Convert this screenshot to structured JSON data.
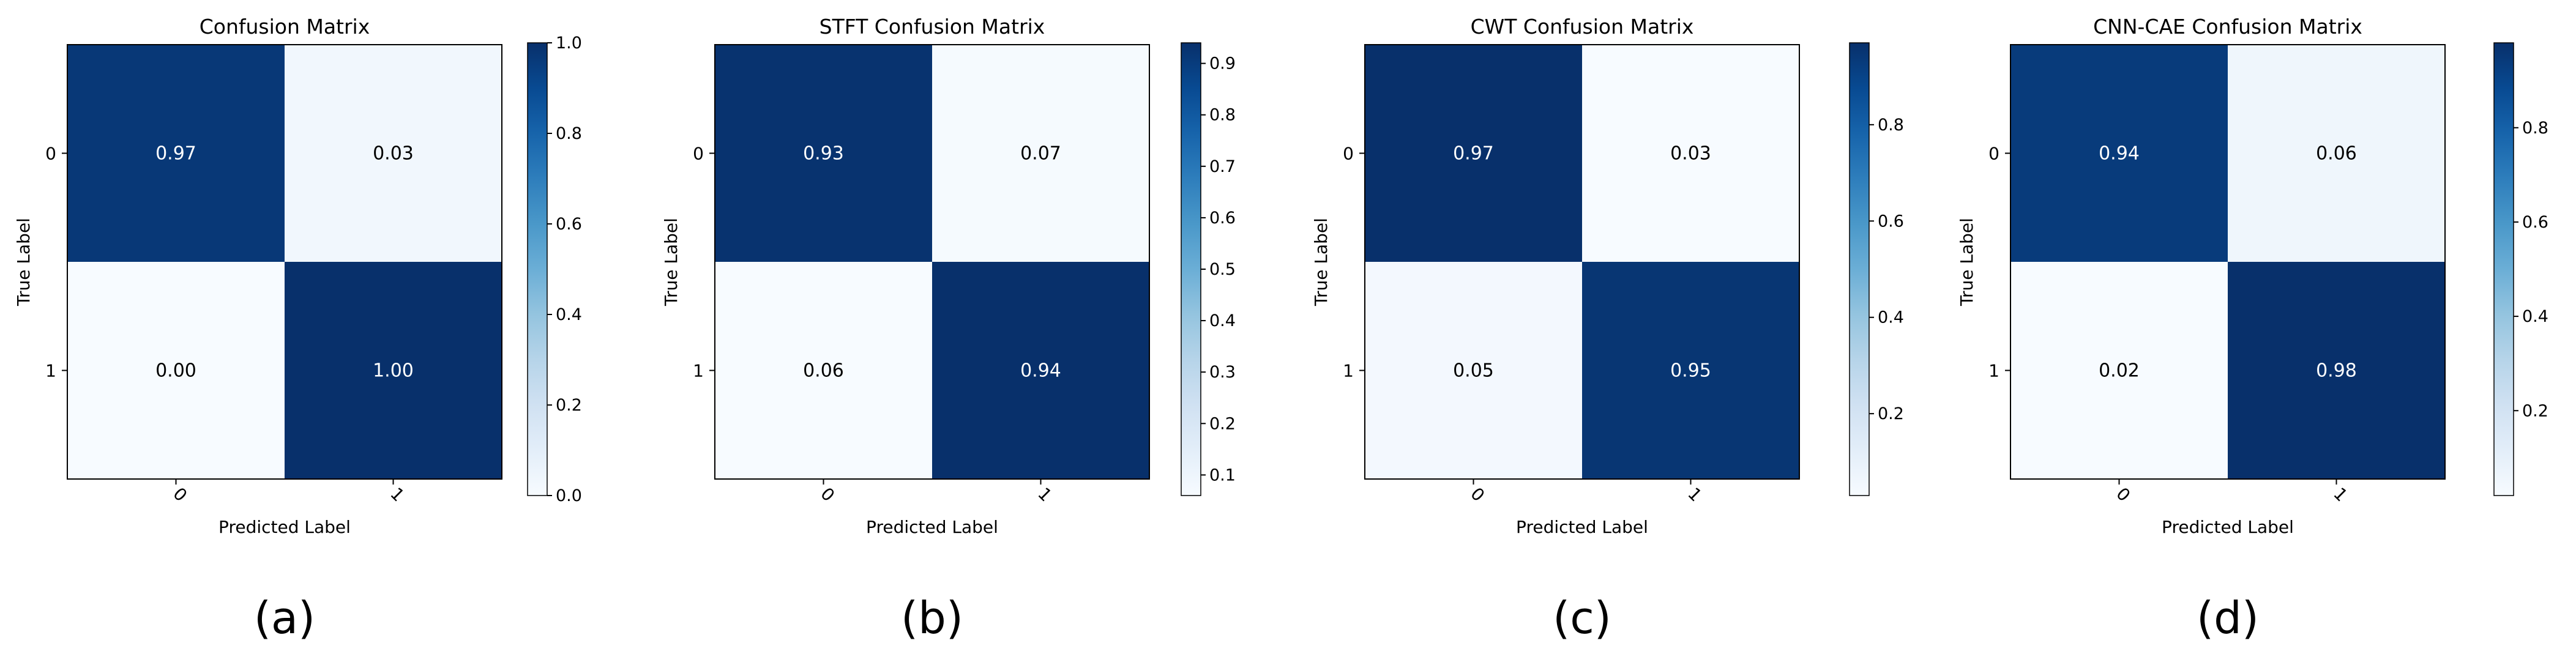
{
  "chart_data": [
    {
      "type": "heatmap",
      "title": "Confusion Matrix",
      "xlabel": "Predicted Label",
      "ylabel": "True Label",
      "x_ticks": [
        "0",
        "1"
      ],
      "y_ticks": [
        "0",
        "1"
      ],
      "values": [
        [
          0.97,
          0.03
        ],
        [
          0.0,
          1.0
        ]
      ],
      "value_labels": [
        [
          "0.97",
          "0.03"
        ],
        [
          "0.00",
          "1.00"
        ]
      ],
      "colorbar": {
        "min": 0.0,
        "max": 1.0,
        "ticks": [
          "0.0",
          "0.2",
          "0.4",
          "0.6",
          "0.8",
          "1.0"
        ]
      },
      "caption": "(a)"
    },
    {
      "type": "heatmap",
      "title": "STFT Confusion Matrix",
      "xlabel": "Predicted Label",
      "ylabel": "True Label",
      "x_ticks": [
        "0",
        "1"
      ],
      "y_ticks": [
        "0",
        "1"
      ],
      "values": [
        [
          0.93,
          0.07
        ],
        [
          0.06,
          0.94
        ]
      ],
      "value_labels": [
        [
          "0.93",
          "0.07"
        ],
        [
          "0.06",
          "0.94"
        ]
      ],
      "colorbar": {
        "min": 0.06,
        "max": 0.94,
        "ticks": [
          "0.1",
          "0.2",
          "0.3",
          "0.4",
          "0.5",
          "0.6",
          "0.7",
          "0.8",
          "0.9"
        ]
      },
      "caption": "(b)"
    },
    {
      "type": "heatmap",
      "title": "CWT Confusion Matrix",
      "xlabel": "Predicted Label",
      "ylabel": "True Label",
      "x_ticks": [
        "0",
        "1"
      ],
      "y_ticks": [
        "0",
        "1"
      ],
      "values": [
        [
          0.97,
          0.03
        ],
        [
          0.05,
          0.95
        ]
      ],
      "value_labels": [
        [
          "0.97",
          "0.03"
        ],
        [
          "0.05",
          "0.95"
        ]
      ],
      "colorbar": {
        "min": 0.03,
        "max": 0.97,
        "ticks": [
          "0.2",
          "0.4",
          "0.6",
          "0.8"
        ]
      },
      "caption": "(c)"
    },
    {
      "type": "heatmap",
      "title": "CNN-CAE Confusion Matrix",
      "xlabel": "Predicted Label",
      "ylabel": "True Label",
      "x_ticks": [
        "0",
        "1"
      ],
      "y_ticks": [
        "0",
        "1"
      ],
      "values": [
        [
          0.94,
          0.06
        ],
        [
          0.02,
          0.98
        ]
      ],
      "value_labels": [
        [
          "0.94",
          "0.06"
        ],
        [
          "0.02",
          "0.98"
        ]
      ],
      "colorbar": {
        "min": 0.02,
        "max": 0.98,
        "ticks": [
          "0.2",
          "0.4",
          "0.6",
          "0.8"
        ]
      },
      "caption": "(d)"
    }
  ],
  "colormap": "Blues",
  "colors": {
    "low": "#f7fbff",
    "high": "#08306b",
    "text_dark": "#000000",
    "text_light": "#ffffff"
  }
}
